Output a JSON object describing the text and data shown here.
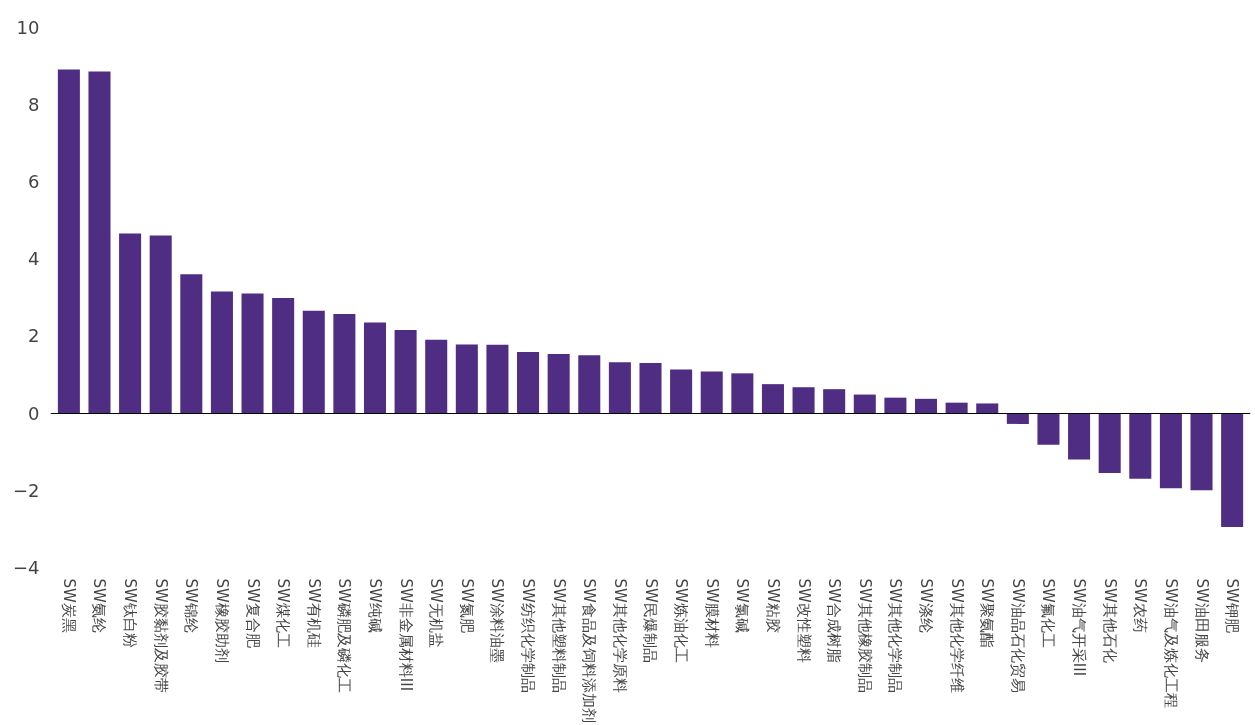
{
  "chart_data": {
    "type": "bar",
    "categories": [
      "SW炭黑",
      "SW氨纶",
      "SW钛白粉",
      "SW胶黏剂及胶带",
      "SW锦纶",
      "SW橡胶助剂",
      "SW复合肥",
      "SW煤化工",
      "SW有机硅",
      "SW磷肥及磷化工",
      "SW纯碱",
      "SW非金属材料III",
      "SW无机盐",
      "SW氮肥",
      "SW涂料油墨",
      "SW纺织化学制品",
      "SW其他塑料制品",
      "SW食品及饲料添加剂",
      "SW其他化学原料",
      "SW民爆制品",
      "SW炼油化工",
      "SW膜材料",
      "SW氯碱",
      "SW粘胶",
      "SW改性塑料",
      "SW合成树脂",
      "SW其他橡胶制品",
      "SW其他化学制品",
      "SW涤纶",
      "SW其他化学纤维",
      "SW聚氨酯",
      "SW油品石化贸易",
      "SW氟化工",
      "SW油气开采III",
      "SW其他石化",
      "SW农药",
      "SW油气及炼化工程",
      "SW油田服务",
      "SW钾肥"
    ],
    "values": [
      8.9,
      8.85,
      4.65,
      4.6,
      3.6,
      3.15,
      3.1,
      2.98,
      2.65,
      2.57,
      2.35,
      2.15,
      1.9,
      1.78,
      1.77,
      1.58,
      1.53,
      1.5,
      1.32,
      1.3,
      1.13,
      1.08,
      1.03,
      0.75,
      0.67,
      0.62,
      0.48,
      0.4,
      0.37,
      0.27,
      0.25,
      -0.28,
      -0.82,
      -1.2,
      -1.55,
      -1.7,
      -1.95,
      -2.0,
      -2.95
    ],
    "color": "#4f2d83",
    "ylim": [
      -4,
      10
    ],
    "yticks": [
      -4,
      -2,
      0,
      2,
      4,
      6,
      8,
      10
    ]
  }
}
